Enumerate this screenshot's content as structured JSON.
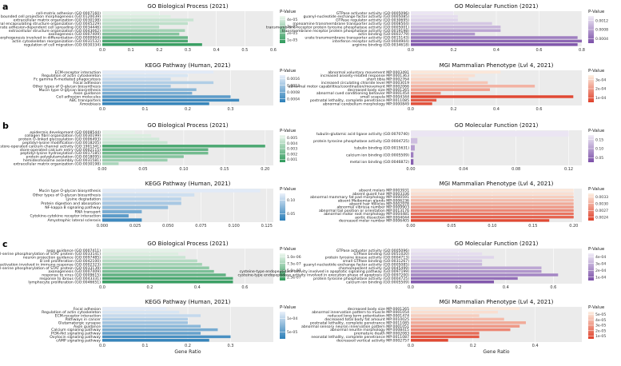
{
  "panel_letters": [
    "a",
    "b",
    "c"
  ],
  "colors": {
    "green": [
      "#eef7ef",
      "#2f9a5c"
    ],
    "blue": [
      "#eaf0fa",
      "#2c7fb8"
    ],
    "purple": [
      "#f1edf7",
      "#7b4fa8"
    ],
    "orange": [
      "#fdf0e2",
      "#e0402a"
    ],
    "panel_bg": "#ebebeb",
    "grid": "#ffffff"
  },
  "chart_data": [
    {
      "section": "a",
      "type": "bar",
      "orientation": "horizontal",
      "palette": "green",
      "title": "GO Biological Process (2021)",
      "xlabel": "",
      "xlim": [
        0,
        0.6
      ],
      "xticks": [
        0.0,
        0.1,
        0.2,
        0.3,
        0.4,
        0.5,
        0.6
      ],
      "xtick_labels": [
        "0.0",
        "0.1",
        "0.2",
        "0.3",
        "0.4",
        "0.5",
        "0.6"
      ],
      "legend_title": "P-Value",
      "legend_ticks": [
        "4e-05",
        "3e-05",
        "2e-05",
        "1e-05"
      ],
      "categories": [
        "cell-matrix adhesion (GO:0007160)",
        "plasma membrane bounded cell projection morphogenesis (GO:0120039)",
        "extracellular matrix organization (GO:0030198)",
        "external encapsulating structure organization (GO:0045229)",
        "substrate adhesion-dependent cell spreading (GO:0034446)",
        "extracellular structure organization (GO:0043062)",
        "axonogenesis (GO:0007409)",
        "cell morphogenesis involved in differentiation (GO:0000904)",
        "actin cytoskeleton reorganization (GO:0031532)",
        "regulation of cell migration (GO:0030334)"
      ],
      "values": [
        0.2,
        0.24,
        0.32,
        0.3,
        0.2,
        0.29,
        0.27,
        0.3,
        0.3,
        0.35
      ],
      "shade": [
        0.05,
        0.1,
        0.2,
        0.25,
        0.3,
        0.4,
        0.55,
        0.7,
        0.85,
        0.95
      ]
    },
    {
      "section": "a",
      "type": "bar",
      "orientation": "horizontal",
      "palette": "purple",
      "title": "GO Molecular Function (2021)",
      "xlabel": "",
      "xlim": [
        0,
        0.8
      ],
      "xticks": [
        0.0,
        0.2,
        0.4,
        0.6,
        0.8
      ],
      "xtick_labels": [
        "0.0",
        "0.2",
        "0.4",
        "0.6",
        "0.8"
      ],
      "legend_title": "P-Value",
      "legend_ticks": [
        "0.0012",
        "0.0008",
        "0.0004"
      ],
      "categories": [
        "GTPase activator activity (GO:0005096)",
        "guanyl-nucleotide exchange factor activity (GO:0005085)",
        "GTPase regulator activity (GO:0030695)",
        "monoamine transmembrane transporter activity (GO:0008504)",
        "transmembrane receptor protein tyrosine phosphatase activity (GO:0005001)",
        "transmembrane receptor protein phosphatase activity (GO:0019198)",
        "actin binding (GO:0003779)",
        "urate transmembrane transporter activity (GO:0015143)",
        "interferon receptor activity (GO:0004904)",
        "arginine binding (GO:0034618)"
      ],
      "values": [
        0.2,
        0.22,
        0.22,
        0.38,
        0.42,
        0.42,
        0.3,
        0.78,
        0.8,
        0.78
      ],
      "shade": [
        0.05,
        0.1,
        0.15,
        0.25,
        0.35,
        0.45,
        0.55,
        0.7,
        0.85,
        0.95
      ]
    },
    {
      "section": "a",
      "type": "bar",
      "orientation": "horizontal",
      "palette": "blue",
      "title": "KEGG Pathway (Human, 2021)",
      "xlabel": "",
      "xlim": [
        0,
        0.4
      ],
      "xticks": [
        0.0,
        0.1,
        0.2,
        0.3
      ],
      "xtick_labels": [
        "0.0",
        "0.1",
        "0.2",
        "0.3"
      ],
      "legend_title": "P-Value",
      "legend_ticks": [
        "0.0016",
        "0.0012",
        "0.0008",
        "0.0004"
      ],
      "categories": [
        "ECM-receptor interaction",
        "Regulation of actin cytoskeleton",
        "Fc gamma R-mediated phagocytosis",
        "Focal adhesion",
        "Other types of O-glycan biosynthesis",
        "Mucin type O-glycan biosynthesis",
        "Axon guidance",
        "Cell adhesion molecules",
        "ABC transporters",
        "Amoebiasis"
      ],
      "values": [
        0.26,
        0.2,
        0.16,
        0.26,
        0.16,
        0.22,
        0.21,
        0.3,
        0.32,
        0.25
      ],
      "shade": [
        0.05,
        0.1,
        0.2,
        0.3,
        0.4,
        0.5,
        0.6,
        0.75,
        0.9,
        0.95
      ]
    },
    {
      "section": "a",
      "type": "bar",
      "orientation": "horizontal",
      "palette": "orange",
      "title": "MGI Mammalian Phenotype (Lvl 4, 2021)",
      "xlabel": "",
      "xlim": [
        0,
        0.8
      ],
      "xticks": [
        0.0,
        0.2,
        0.4,
        0.6
      ],
      "xtick_labels": [
        "0.0",
        "0.2",
        "0.4",
        "0.6"
      ],
      "legend_title": "P-Value",
      "legend_ticks": [
        "3e-04",
        "2e-04",
        "1e-04"
      ],
      "categories": [
        "abnormal voluntary movement MP:0003491",
        "increased anxiety-related response MP:0001363",
        "short tibia MP:0002764",
        "increased circulating chloride level MP:0003019",
        "abnormal motor capabilities/coordination/movement MP:0002066",
        "decreased body size MP:0001265",
        "abnormal cued conditioning behavior MP:0001454",
        "small scapula MP:0004344",
        "postnatal lethality, complete penetrance MP:0011085",
        "abnormal cerebellum morphology MP:0000849"
      ],
      "values": [
        0.42,
        0.3,
        0.27,
        0.36,
        0.58,
        0.37,
        0.14,
        0.76,
        0.12,
        0.1
      ],
      "shade": [
        0.05,
        0.1,
        0.15,
        0.25,
        0.35,
        0.45,
        0.55,
        0.95,
        0.85,
        0.9
      ]
    },
    {
      "section": "b",
      "type": "bar",
      "orientation": "horizontal",
      "palette": "green",
      "title": "GO Biological Process (2021)",
      "xlabel": "",
      "xlim": [
        0,
        0.21
      ],
      "xticks": [
        0.0,
        0.05,
        0.1,
        0.15,
        0.2
      ],
      "xtick_labels": [
        "0.00",
        "0.05",
        "0.10",
        "0.15",
        "0.20"
      ],
      "legend_title": "P-Value",
      "legend_ticks": [
        "0.005",
        "0.004",
        "0.003",
        "0.002",
        "0.001"
      ],
      "categories": [
        "epidermis development (GO:0008544)",
        "collagen fibril organization (GO:0030199)",
        "protein O-linked glycosylation (GO:0006493)",
        "peptidyl-lysine modification (GO:0018205)",
        "positive regulation of store-operated calcium channel activity (GO:1901341)",
        "store-operated calcium entry (GO:0002115)",
        "peptidyl-lysine hydroxylation (GO:0017185)",
        "protein polyglutamylation (GO:0018095)",
        "hemidesmosome assembly (GO:0031581)",
        "extracellular matrix organization (GO:0030198)"
      ],
      "values": [
        0.04,
        0.06,
        0.07,
        0.08,
        0.2,
        0.13,
        0.13,
        0.1,
        0.08,
        0.02
      ],
      "shade": [
        0.05,
        0.1,
        0.15,
        0.2,
        0.85,
        0.75,
        0.65,
        0.55,
        0.45,
        0.35
      ]
    },
    {
      "section": "b",
      "type": "bar",
      "orientation": "horizontal",
      "palette": "purple",
      "title": "GO Molecular Function (2021)",
      "xlabel": "",
      "xlim": [
        0,
        0.13
      ],
      "xticks": [
        0.0,
        0.04,
        0.08,
        0.12
      ],
      "xtick_labels": [
        "0.00",
        "0.04",
        "0.08",
        "0.12"
      ],
      "legend_title": "P-Value",
      "legend_ticks": [
        "0.15",
        "0.10",
        "0.05"
      ],
      "categories": [
        "tubulin-glutamic acid ligase activity (GO:0070740)",
        "protein tyrosine phosphatase activity (GO:0004725)",
        "tubulin binding (GO:0015631)",
        "calcium ion binding (GO:0005509)",
        "metal ion binding (GO:0046872)"
      ],
      "values": [
        0.12,
        0.005,
        0.003,
        0.002,
        0.002
      ],
      "shade": [
        0.05,
        0.3,
        0.5,
        0.7,
        0.9
      ]
    },
    {
      "section": "b",
      "type": "bar",
      "orientation": "horizontal",
      "palette": "blue",
      "title": "KEGG Pathway (Human, 2021)",
      "xlabel": "",
      "xlim": [
        0,
        0.13
      ],
      "xticks": [
        0.0,
        0.025,
        0.05,
        0.075,
        0.1,
        0.125
      ],
      "xtick_labels": [
        "0.000",
        "0.025",
        "0.050",
        "0.075",
        "0.100",
        "0.125"
      ],
      "legend_title": "P-Value",
      "legend_ticks": [
        "0.10",
        "0.05"
      ],
      "categories": [
        "Mucin type O-glycan biosynthesis",
        "Other types of O-glycan biosynthesis",
        "Lysine degradation",
        "Protein digestion and absorption",
        "NF-kappa B signaling pathway",
        "RNA transport",
        "Cytokine-cytokine receptor interaction",
        "Amyotrophic lateral sclerosis"
      ],
      "values": [
        0.12,
        0.07,
        0.06,
        0.06,
        0.05,
        0.03,
        0.02,
        0.03
      ],
      "shade": [
        0.05,
        0.15,
        0.25,
        0.35,
        0.45,
        0.6,
        0.75,
        0.9
      ]
    },
    {
      "section": "b",
      "type": "bar",
      "orientation": "horizontal",
      "palette": "orange",
      "title": "MGI Mammalian Phenotype (Lvl 4, 2021)",
      "xlabel": "",
      "xlim": [
        0,
        0.21
      ],
      "xticks": [
        0.0,
        0.05,
        0.1,
        0.15,
        0.2
      ],
      "xtick_labels": [
        "0.00",
        "0.05",
        "0.10",
        "0.15",
        "0.20"
      ],
      "legend_title": "P-Value",
      "legend_ticks": [
        "0.0033",
        "0.0030",
        "0.0027",
        "0.0024"
      ],
      "categories": [
        "absent molars MP:0003931",
        "absent guard hair MP:0003336",
        "abnormal mammary fat pad morphology MP:0000591",
        "absent Meibomian glands MP:0006236",
        "absent hair follicles MP:0002978",
        "abnormal vibrissa number MP:0009903",
        "abnormal tail position or orientation MP:0013176",
        "abnormal motor root morphology MP:0004481",
        "aortic dissection MP:0004044",
        "decreased molar number MP:0006405"
      ],
      "values": [
        0.2,
        0.2,
        0.2,
        0.2,
        0.2,
        0.2,
        0.2,
        0.2,
        0.2,
        0.17
      ],
      "shade": [
        0.05,
        0.1,
        0.2,
        0.3,
        0.4,
        0.5,
        0.6,
        0.7,
        0.8,
        0.95
      ]
    },
    {
      "section": "c",
      "type": "bar",
      "orientation": "horizontal",
      "palette": "green",
      "title": "GO Biological Process (2021)",
      "xlabel": "",
      "xlim": [
        0,
        0.72
      ],
      "xticks": [
        0.0,
        0.2,
        0.4,
        0.6
      ],
      "xtick_labels": [
        "0.0",
        "0.2",
        "0.4",
        "0.6"
      ],
      "legend_title": "P-Value",
      "legend_ticks": [
        "1.0e-06",
        "7.5e-07",
        "5.0e-07",
        "2.5e-07"
      ],
      "categories": [
        "axon guidance (GO:0007411)",
        "positive regulation of peptidyl-serine phosphorylation of STAT protein (GO:0033141)",
        "neuron projection guidance (GO:0097485)",
        "B cell proliferation (GO:0042100)",
        "natural killer cell activation involved in immune response (GO:0002323)",
        "regulation of peptidyl-serine phosphorylation of STAT protein (GO:0033139)",
        "axonogenesis (GO:0007409)",
        "response to virus (GO:0009615)",
        "response to ibrous (GO:0043331)",
        "lymphocyte proliferation (GO:0046651)"
      ],
      "values": [
        0.35,
        0.32,
        0.35,
        0.4,
        0.42,
        0.45,
        0.47,
        0.52,
        0.55,
        0.55
      ],
      "shade": [
        0.05,
        0.1,
        0.2,
        0.3,
        0.4,
        0.5,
        0.6,
        0.75,
        0.85,
        0.95
      ]
    },
    {
      "section": "c",
      "type": "bar",
      "orientation": "horizontal",
      "palette": "purple",
      "title": "GO Molecular Function (2021)",
      "xlabel": "",
      "xlim": [
        0,
        0.72
      ],
      "xticks": [
        0.0,
        0.2,
        0.4,
        0.6
      ],
      "xtick_labels": [
        "0.0",
        "0.2",
        "0.4",
        "0.6"
      ],
      "legend_title": "P-Value",
      "legend_ticks": [
        "4e-04",
        "3e-04",
        "2e-04",
        "1e-04"
      ],
      "categories": [
        "GTPase activator activity (GO:0005096)",
        "GTPase binding (GO:0051020)",
        "protein tyrosine kinase activity (GO:0004713)",
        "small GTPase binding (GO:0031267)",
        "guanyl-nucleotide exchange factor activity (GO:0005085)",
        "chemorepellent activity (GO:0045499)",
        "cysteine-type endopeptidase activity involved in apoptotic signaling pathway (GO:0097199)",
        "cysteine-type endopeptidase activity involved in execution phase of apoptosis (GO:0097200)",
        "protein tyrosine phosphatase activity (GO:0004725)",
        "calcium ion binding (GO:0005509)"
      ],
      "values": [
        0.25,
        0.3,
        0.35,
        0.3,
        0.3,
        0.55,
        0.55,
        0.62,
        0.45,
        0.35
      ],
      "shade": [
        0.05,
        0.1,
        0.15,
        0.25,
        0.35,
        0.45,
        0.55,
        0.65,
        0.8,
        0.95
      ]
    },
    {
      "section": "c",
      "type": "bar",
      "orientation": "horizontal",
      "palette": "blue",
      "title": "KEGG Pathway (Human, 2021)",
      "xlabel": "Gene Ratio",
      "xlim": [
        0,
        0.4
      ],
      "xticks": [
        0.0,
        0.1,
        0.2,
        0.3
      ],
      "xtick_labels": [
        "0.0",
        "0.1",
        "0.2",
        "0.3"
      ],
      "legend_title": "P-Value",
      "legend_ticks": [
        "1e-04",
        "5e-05"
      ],
      "categories": [
        "Focal adhesion",
        "Regulation of actin cytoskeleton",
        "ECM-receptor interaction",
        "Pathways in cancer",
        "Glutamatergic synapse",
        "Axon guidance",
        "Calcium signaling pathway",
        "PI3K-Akt signaling pathway",
        "Oxytocin signaling pathway",
        "cAMP signaling pathway"
      ],
      "values": [
        0.15,
        0.18,
        0.23,
        0.2,
        0.2,
        0.23,
        0.27,
        0.23,
        0.3,
        0.25
      ],
      "shade": [
        0.05,
        0.1,
        0.2,
        0.3,
        0.4,
        0.5,
        0.6,
        0.7,
        0.85,
        0.95
      ]
    },
    {
      "section": "c",
      "type": "bar",
      "orientation": "horizontal",
      "palette": "orange",
      "title": "MGI Mammalian Phenotype (Lvl 4, 2021)",
      "xlabel": "Gene Ratio",
      "xlim": [
        0,
        0.55
      ],
      "xticks": [
        0.0,
        0.2,
        0.4
      ],
      "xtick_labels": [
        "0.0",
        "0.2",
        "0.4"
      ],
      "legend_title": "P-Value",
      "legend_ticks": [
        "5e-05",
        "4e-05",
        "3e-05",
        "2e-05",
        "1e-05"
      ],
      "categories": [
        "decreased body size MP:0001265",
        "abnormal innervation pattern to muscle MP:0001054",
        "reduced long term potentiation MP:0001474",
        "decreased total body fat amount MP:0010025",
        "postnatal lethality, complete penetrance MP:0011085",
        "abnormal sensory neuron innervation pattern MP:0001051",
        "abnormal neurite morphology MP:0008415",
        "premature death MP:0002083",
        "neonatal lethality, complete penetrance MP:0011087",
        "decreased vertical activity MP:0002757"
      ],
      "values": [
        0.35,
        0.28,
        0.22,
        0.3,
        0.37,
        0.35,
        0.32,
        0.22,
        0.22,
        0.12
      ],
      "shade": [
        0.05,
        0.1,
        0.2,
        0.3,
        0.4,
        0.5,
        0.6,
        0.75,
        0.85,
        0.95
      ]
    }
  ]
}
